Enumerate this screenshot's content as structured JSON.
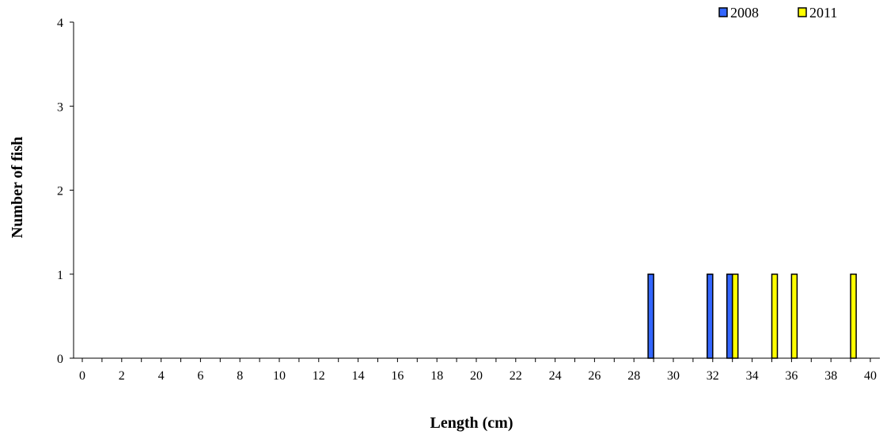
{
  "chart_data": {
    "type": "bar",
    "title": "",
    "xlabel": "Length (cm)",
    "ylabel": "Number of fish",
    "xlim": [
      0,
      40
    ],
    "ylim": [
      0,
      4
    ],
    "xticks": [
      0,
      2,
      4,
      6,
      8,
      10,
      12,
      14,
      16,
      18,
      20,
      22,
      24,
      26,
      28,
      30,
      32,
      34,
      36,
      38,
      40
    ],
    "yticks": [
      0,
      1,
      2,
      3,
      4
    ],
    "grid": false,
    "legend_position": "top-right",
    "series": [
      {
        "name": "2008",
        "color": "#3366ff",
        "x": [
          29,
          32,
          33
        ],
        "values": [
          1,
          1,
          1
        ]
      },
      {
        "name": "2011",
        "color": "#ffff00",
        "x": [
          33,
          35,
          36,
          39
        ],
        "values": [
          1,
          1,
          1,
          1
        ]
      }
    ]
  }
}
